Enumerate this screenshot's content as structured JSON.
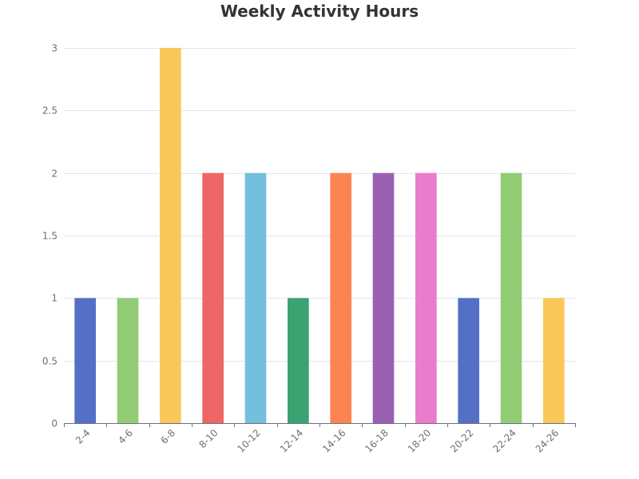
{
  "chart_data": {
    "type": "bar",
    "title": "Weekly Activity Hours",
    "xlabel": "",
    "ylabel": "",
    "categories": [
      "2-4",
      "4-6",
      "6-8",
      "8-10",
      "10-12",
      "12-14",
      "14-16",
      "16-18",
      "18-20",
      "20-22",
      "22-24",
      "24-26"
    ],
    "values": [
      1,
      1,
      3,
      2,
      2,
      1,
      2,
      2,
      2,
      1,
      2,
      1
    ],
    "ylim": [
      0,
      3
    ],
    "yticks": [
      "0",
      "0.5",
      "1",
      "1.5",
      "2",
      "2.5",
      "3"
    ],
    "colors": [
      "#5470c6",
      "#91cc75",
      "#fac858",
      "#ee6666",
      "#73c0de",
      "#3ba272",
      "#fc8452",
      "#9a60b4",
      "#ea7ccc",
      "#5470c6",
      "#91cc75",
      "#fac858"
    ],
    "grid": true,
    "legend": "none"
  }
}
